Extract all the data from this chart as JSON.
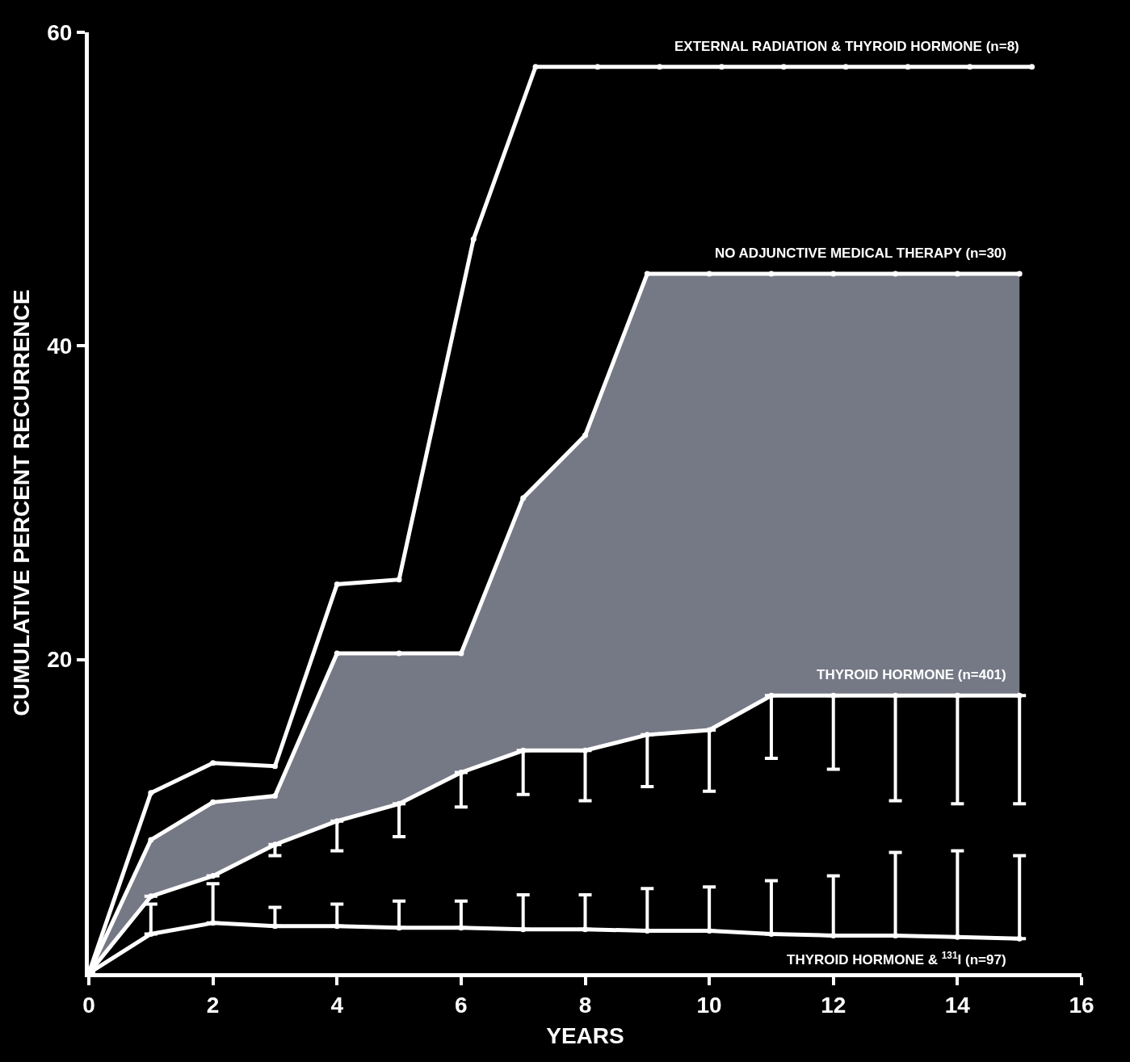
{
  "chart_data": {
    "type": "line",
    "xlabel": "YEARS",
    "ylabel": "CUMULATIVE PERCENT RECURRENCE",
    "xlim": [
      0,
      16
    ],
    "xticks": [
      0,
      2,
      4,
      6,
      8,
      10,
      12,
      14,
      16
    ],
    "ylim": [
      0,
      60
    ],
    "yticks": [
      20,
      40,
      60
    ],
    "grid": false,
    "legend": false,
    "marker": "circle",
    "line_style": "solid",
    "series": [
      {
        "name": "EXTERNAL RADIATION & THYROID HORMONE (n=8)",
        "color": "#ffffff",
        "x": [
          0,
          1,
          2,
          3,
          4,
          5,
          6.2,
          7.2,
          8.2,
          9.2,
          10.2,
          11.2,
          12.2,
          13.2,
          14.2,
          15.2
        ],
        "values": [
          0,
          11.5,
          13.4,
          13.2,
          24.8,
          25.1,
          46.8,
          57.8,
          57.8,
          57.8,
          57.8,
          57.8,
          57.8,
          57.8,
          57.8,
          57.8
        ]
      },
      {
        "name": "THYROID HORMONE (n=401)",
        "color": "#ffffff",
        "x": [
          0,
          1,
          2,
          3,
          4,
          5,
          6,
          7,
          8,
          9,
          10,
          11,
          12,
          13,
          14,
          15
        ],
        "values": [
          0,
          4.9,
          6.2,
          8.2,
          9.7,
          10.8,
          12.8,
          14.2,
          14.2,
          15.2,
          15.5,
          17.7,
          17.7,
          17.7,
          17.7,
          17.7
        ],
        "errors": [
          null,
          null,
          null,
          [
            7.5,
            8.2
          ],
          [
            7.8,
            9.7
          ],
          [
            8.7,
            10.8
          ],
          [
            10.6,
            12.8
          ],
          [
            11.4,
            14.2
          ],
          [
            11.0,
            14.2
          ],
          [
            11.9,
            15.2
          ],
          [
            11.6,
            15.5
          ],
          [
            13.7,
            17.7
          ],
          [
            13.0,
            17.7
          ],
          [
            11.0,
            17.7
          ],
          [
            10.8,
            17.7
          ],
          [
            10.8,
            17.7
          ]
        ]
      },
      {
        "name": "NO ADJUNCTIVE MEDICAL THERAPY (n=30)",
        "type": "area",
        "color": "#ffffff",
        "x": [
          0,
          1,
          2,
          3,
          4,
          5,
          6,
          7,
          8,
          9,
          10,
          11,
          12,
          13,
          14,
          15
        ],
        "values": [
          0,
          8.5,
          10.9,
          11.3,
          20.4,
          20.4,
          20.4,
          30.3,
          34.3,
          44.6,
          44.6,
          44.6,
          44.6,
          44.6,
          44.6,
          44.6
        ]
      },
      {
        "name": "THYROID HORMONE & $^{131}$I (n=97)",
        "color": "#ffffff",
        "x": [
          0,
          1,
          2,
          3,
          4,
          5,
          6,
          7,
          8,
          9,
          10,
          11,
          12,
          13,
          14,
          15
        ],
        "values": [
          0,
          2.5,
          3.2,
          3.0,
          3.0,
          2.9,
          2.9,
          2.8,
          2.8,
          2.7,
          2.7,
          2.5,
          2.4,
          2.4,
          2.3,
          2.2
        ],
        "errors": [
          null,
          [
            2.5,
            4.4
          ],
          [
            3.2,
            5.7
          ],
          [
            3.0,
            4.2
          ],
          [
            3.0,
            4.4
          ],
          [
            2.9,
            4.6
          ],
          [
            2.9,
            4.6
          ],
          [
            2.8,
            5.0
          ],
          [
            2.8,
            5.0
          ],
          [
            2.7,
            5.4
          ],
          [
            2.7,
            5.5
          ],
          [
            2.5,
            5.9
          ],
          [
            2.4,
            6.2
          ],
          [
            2.4,
            7.7
          ],
          [
            2.3,
            7.8
          ],
          [
            2.2,
            7.5
          ]
        ]
      }
    ]
  }
}
